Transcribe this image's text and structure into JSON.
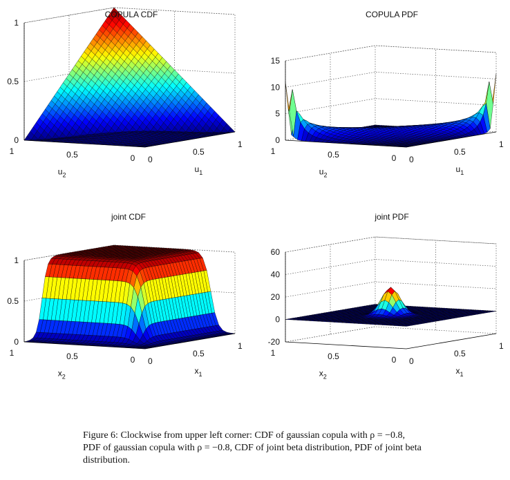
{
  "chart_data": [
    {
      "type": "surface3d",
      "title": "COPULA CDF",
      "xlabel": "u",
      "xsub": "1",
      "ylabel": "u",
      "ysub": "2",
      "xticks": [
        0,
        0.5,
        1
      ],
      "yticks": [
        0,
        0.5,
        1
      ],
      "zticks": [
        0,
        0.5,
        1
      ],
      "zlim": [
        0,
        1
      ],
      "grid": true,
      "surface": "Gaussian copula CDF, rho = -0.8: rises from 0 to 1 at (1,1)"
    },
    {
      "type": "surface3d",
      "title": "COPULA PDF",
      "xlabel": "u",
      "xsub": "1",
      "ylabel": "u",
      "ysub": "2",
      "xticks": [
        0,
        0.5,
        1
      ],
      "yticks": [
        0,
        0.5,
        1
      ],
      "zticks": [
        0,
        5,
        10,
        15
      ],
      "zlim": [
        0,
        15
      ],
      "grid": true,
      "surface": "Gaussian copula PDF, rho = -0.8: near 0 in the interior, spikes to ~11 at corners (0,1) and (1,0)"
    },
    {
      "type": "surface3d",
      "title": "joint CDF",
      "xlabel": "x",
      "xsub": "1",
      "ylabel": "x",
      "ysub": "2",
      "xticks": [
        0,
        0.5,
        1
      ],
      "yticks": [
        0,
        0.5,
        1
      ],
      "zticks": [
        0,
        0.5,
        1
      ],
      "zlim": [
        0,
        1
      ],
      "grid": true,
      "surface": "Joint beta CDF: plateau near 1 over most of the domain, dropping to 0 along edges"
    },
    {
      "type": "surface3d",
      "title": "joint PDF",
      "xlabel": "x",
      "xsub": "1",
      "ylabel": "x",
      "ysub": "2",
      "xticks": [
        0,
        0.5,
        1
      ],
      "yticks": [
        0,
        0.5,
        1
      ],
      "zticks": [
        -20,
        0,
        20,
        40,
        60
      ],
      "zlim": [
        -20,
        60
      ],
      "grid": true,
      "surface": "Joint beta PDF: single peak of ~25 near the center, flat 0 elsewhere"
    }
  ],
  "caption": {
    "text": "Figure 6: Clockwise from upper left corner: CDF of gaussian copula with ρ = −0.8, PDF of gaussian copula with ρ = −0.8, CDF of joint beta distribution, PDF of joint beta distribution."
  }
}
